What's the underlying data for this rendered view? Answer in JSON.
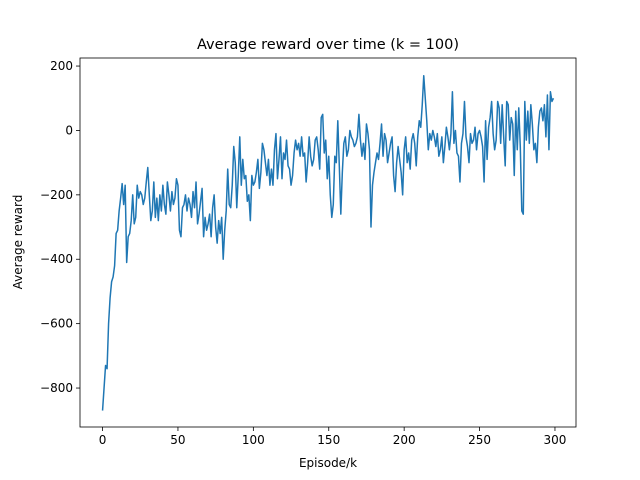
{
  "chart_data": {
    "type": "line",
    "title": "Average reward over time (k = 100)",
    "x_label": "Episode/k",
    "y_label": "Average reward",
    "color": "#1f77b4",
    "xlim": [
      -14.95,
      313.95
    ],
    "ylim": [
      -921,
      225
    ],
    "xticks": [
      0,
      50,
      100,
      150,
      200,
      250,
      300
    ],
    "yticks": [
      {
        "value": -800,
        "label": "−800"
      },
      {
        "value": -600,
        "label": "−600"
      },
      {
        "value": -400,
        "label": "−400"
      },
      {
        "value": -200,
        "label": "−200"
      },
      0,
      200
    ],
    "grid": false,
    "x": [
      0,
      1,
      2,
      3,
      4,
      5,
      6,
      7,
      8,
      9,
      10,
      11,
      12,
      13,
      14,
      15,
      16,
      17,
      18,
      19,
      20,
      21,
      22,
      23,
      24,
      25,
      26,
      27,
      28,
      29,
      30,
      31,
      32,
      33,
      34,
      35,
      36,
      37,
      38,
      39,
      40,
      41,
      42,
      43,
      44,
      45,
      46,
      47,
      48,
      49,
      50,
      51,
      52,
      53,
      54,
      55,
      56,
      57,
      58,
      59,
      60,
      61,
      62,
      63,
      64,
      65,
      66,
      67,
      68,
      69,
      70,
      71,
      72,
      73,
      74,
      75,
      76,
      77,
      78,
      79,
      80,
      81,
      82,
      83,
      84,
      85,
      86,
      87,
      88,
      89,
      90,
      91,
      92,
      93,
      94,
      95,
      96,
      97,
      98,
      99,
      100,
      101,
      102,
      103,
      104,
      105,
      106,
      107,
      108,
      109,
      110,
      111,
      112,
      113,
      114,
      115,
      116,
      117,
      118,
      119,
      120,
      121,
      122,
      123,
      124,
      125,
      126,
      127,
      128,
      129,
      130,
      131,
      132,
      133,
      134,
      135,
      136,
      137,
      138,
      139,
      140,
      141,
      142,
      143,
      144,
      145,
      146,
      147,
      148,
      149,
      150,
      151,
      152,
      153,
      154,
      155,
      156,
      157,
      158,
      159,
      160,
      161,
      162,
      163,
      164,
      165,
      166,
      167,
      168,
      169,
      170,
      171,
      172,
      173,
      174,
      175,
      176,
      177,
      178,
      179,
      180,
      181,
      182,
      183,
      184,
      185,
      186,
      187,
      188,
      189,
      190,
      191,
      192,
      193,
      194,
      195,
      196,
      197,
      198,
      199,
      200,
      201,
      202,
      203,
      204,
      205,
      206,
      207,
      208,
      209,
      210,
      211,
      212,
      213,
      214,
      215,
      216,
      217,
      218,
      219,
      220,
      221,
      222,
      223,
      224,
      225,
      226,
      227,
      228,
      229,
      230,
      231,
      232,
      233,
      234,
      235,
      236,
      237,
      238,
      239,
      240,
      241,
      242,
      243,
      244,
      245,
      246,
      247,
      248,
      249,
      250,
      251,
      252,
      253,
      254,
      255,
      256,
      257,
      258,
      259,
      260,
      261,
      262,
      263,
      264,
      265,
      266,
      267,
      268,
      269,
      270,
      271,
      272,
      273,
      274,
      275,
      276,
      277,
      278,
      279,
      280,
      281,
      282,
      283,
      284,
      285,
      286,
      287,
      288,
      289,
      290,
      291,
      292,
      293,
      294,
      295,
      296,
      297,
      298,
      299
    ],
    "values": [
      -870,
      -800,
      -730,
      -740,
      -600,
      -520,
      -470,
      -455,
      -420,
      -320,
      -310,
      -250,
      -210,
      -165,
      -230,
      -170,
      -410,
      -330,
      -320,
      -280,
      -200,
      -290,
      -270,
      -170,
      -210,
      -190,
      -200,
      -230,
      -210,
      -160,
      -115,
      -200,
      -280,
      -250,
      -160,
      -270,
      -210,
      -280,
      -200,
      -250,
      -170,
      -230,
      -260,
      -160,
      -200,
      -250,
      -190,
      -230,
      -210,
      -150,
      -170,
      -310,
      -330,
      -240,
      -230,
      -200,
      -250,
      -210,
      -230,
      -270,
      -190,
      -240,
      -160,
      -290,
      -260,
      -220,
      -180,
      -330,
      -270,
      -310,
      -290,
      -260,
      -330,
      -240,
      -200,
      -300,
      -350,
      -280,
      -320,
      -270,
      -400,
      -310,
      -250,
      -120,
      -230,
      -240,
      -170,
      -50,
      -100,
      -240,
      -140,
      -20,
      -170,
      -90,
      -150,
      -140,
      -220,
      -200,
      -280,
      -140,
      -170,
      -160,
      -130,
      -90,
      -180,
      -130,
      -40,
      -60,
      -100,
      -140,
      -90,
      -170,
      -120,
      -170,
      -60,
      -10,
      -150,
      -90,
      -20,
      -150,
      -70,
      -90,
      -30,
      -110,
      -120,
      -170,
      -140,
      -70,
      -30,
      -60,
      -40,
      -80,
      -20,
      -80,
      -70,
      -160,
      -100,
      -20,
      -80,
      -110,
      -90,
      -30,
      -20,
      -60,
      -120,
      40,
      50,
      -70,
      -30,
      -150,
      -80,
      -200,
      -270,
      -230,
      -80,
      -100,
      30,
      -110,
      -260,
      -130,
      -40,
      -20,
      -80,
      -60,
      0,
      -20,
      -30,
      -50,
      -40,
      -20,
      50,
      -30,
      -80,
      -40,
      -90,
      20,
      -10,
      -60,
      -300,
      -170,
      -130,
      -100,
      -70,
      -90,
      -40,
      20,
      -80,
      -10,
      -30,
      -100,
      -70,
      -40,
      -20,
      -140,
      -190,
      -100,
      -50,
      -90,
      -130,
      -200,
      -60,
      -20,
      -100,
      -70,
      -120,
      -30,
      -10,
      -40,
      -110,
      -20,
      30,
      10,
      80,
      170,
      100,
      30,
      -60,
      -10,
      -30,
      0,
      -20,
      -50,
      -10,
      -80,
      -60,
      -20,
      -100,
      -50,
      10,
      -20,
      -60,
      -10,
      120,
      -40,
      0,
      -70,
      -80,
      -160,
      -40,
      -10,
      90,
      -20,
      -50,
      -100,
      -10,
      -40,
      -30,
      10,
      -60,
      -10,
      0,
      -20,
      -50,
      -160,
      30,
      -90,
      10,
      40,
      90,
      -10,
      -60,
      -30,
      90,
      70,
      -40,
      80,
      -20,
      -110,
      90,
      80,
      -30,
      40,
      20,
      -140,
      60,
      -60,
      70,
      -50,
      -250,
      -260,
      90,
      -30,
      60,
      -40,
      80,
      20,
      -60,
      -40,
      -100,
      10,
      60,
      70,
      30,
      80,
      -20,
      110,
      -60,
      120,
      90,
      100
    ]
  }
}
